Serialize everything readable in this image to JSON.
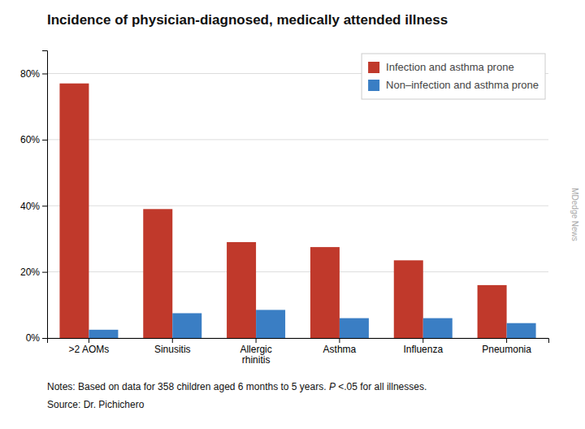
{
  "chart_data": {
    "type": "bar",
    "title": "Incidence of physician-diagnosed, medically attended illness",
    "categories": [
      ">2 AOMs",
      "Sinusitis",
      "Allergic\nrhinitis",
      "Asthma",
      "Influenza",
      "Pneumonia"
    ],
    "series": [
      {
        "name": "Infection and asthma prone",
        "color": "#C0392B",
        "values": [
          77,
          39,
          29,
          27.5,
          23.5,
          16
        ]
      },
      {
        "name": "Non–infection and asthma prone",
        "color": "#3A7EC4",
        "values": [
          2.5,
          7.5,
          8.5,
          6,
          6,
          4.5
        ]
      }
    ],
    "ylim": [
      0,
      87
    ],
    "yticks": [
      {
        "value": 0,
        "label": "0%"
      },
      {
        "value": 20,
        "label": "20%"
      },
      {
        "value": 40,
        "label": "40%"
      },
      {
        "value": 60,
        "label": "60%"
      },
      {
        "value": 80,
        "label": "80%"
      }
    ],
    "grid": true,
    "legend": "upper right",
    "notes_prefix": "Notes: Based on data for 358 children aged 6 months to 5 years. ",
    "notes_italic": "P",
    "notes_suffix": " <.05 for all illnesses.",
    "source": "Source: Dr. Pichichero",
    "watermark": "MDedge News"
  }
}
